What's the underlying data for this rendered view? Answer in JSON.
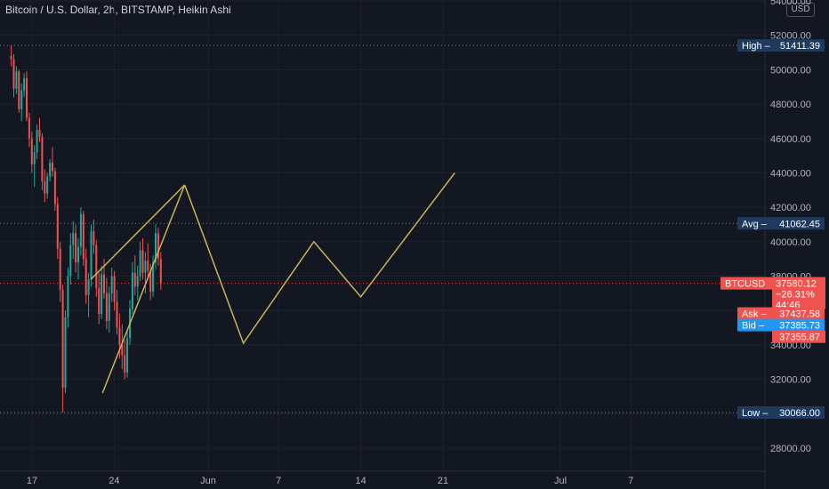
{
  "header": {
    "title": "Bitcoin / U.S. Dollar, 2h, BITSTAMP, Heikin Ashi",
    "currency": "USD"
  },
  "colors": {
    "background": "#131722",
    "grid": "#1e222d",
    "up": "#26a69a",
    "down": "#ef5350",
    "drawing": "#c9b45a",
    "hilo_tag": "#1e3a5f",
    "last_tag": "#ef5350",
    "bid_tag": "#2196f3"
  },
  "chart_data": {
    "type": "candlestick",
    "ylim": [
      28000,
      54000
    ],
    "yticks": [
      28000,
      30000,
      32000,
      34000,
      36000,
      38000,
      40000,
      42000,
      44000,
      46000,
      48000,
      50000,
      52000,
      54000
    ],
    "xticks": [
      {
        "label": "17",
        "x": "2021-05-17"
      },
      {
        "label": "24",
        "x": "2021-05-24"
      },
      {
        "label": "Jun",
        "x": "2021-06-01"
      },
      {
        "label": "7",
        "x": "2021-06-07"
      },
      {
        "label": "14",
        "x": "2021-06-14"
      },
      {
        "label": "21",
        "x": "2021-06-21"
      },
      {
        "label": "Jul",
        "x": "2021-07-01"
      },
      {
        "label": "7",
        "x": "2021-07-07"
      }
    ],
    "price_stats": [
      {
        "label": "High",
        "value": "51411.39",
        "y": 51411.39,
        "kind": "hilo"
      },
      {
        "label": "Avg",
        "value": "41062.45",
        "y": 41062.45,
        "kind": "hilo"
      },
      {
        "label": "Low",
        "value": "30066.00",
        "y": 30066.0,
        "kind": "hilo"
      }
    ],
    "last_price": {
      "symbol": "BTCUSD",
      "price": "37580.12",
      "change": "−26.31%",
      "countdown": "44:46",
      "y": 37580.12
    },
    "ask": {
      "label": "Ask",
      "value": "37437.58",
      "y": 37437.58
    },
    "bid": {
      "label": "Bid",
      "value": "37385.73",
      "y": 37385.73
    },
    "extra_price": {
      "value": "37355.87",
      "y": 37355.87
    },
    "drawings": [
      {
        "name": "wedge-upper-line",
        "points": [
          [
            "2021-05-22",
            37800
          ],
          [
            "2021-05-30",
            43300
          ]
        ]
      },
      {
        "name": "wedge-lower-line",
        "points": [
          [
            "2021-05-23",
            31200
          ],
          [
            "2021-05-30",
            43300
          ]
        ]
      },
      {
        "name": "projection-path",
        "points": [
          [
            "2021-05-30",
            43300
          ],
          [
            "2021-06-04",
            34100
          ],
          [
            "2021-06-10",
            40000
          ],
          [
            "2021-06-14",
            36800
          ],
          [
            "2021-06-22",
            44000
          ]
        ]
      }
    ],
    "candles_ohlc": [
      [
        50800,
        51411,
        50200,
        50600
      ],
      [
        50600,
        50900,
        48400,
        48900
      ],
      [
        48900,
        50200,
        48600,
        49900
      ],
      [
        49900,
        50000,
        47500,
        47700
      ],
      [
        47700,
        49200,
        47000,
        48800
      ],
      [
        48800,
        49800,
        48400,
        49500
      ],
      [
        49500,
        49900,
        47000,
        47200
      ],
      [
        47200,
        47500,
        45500,
        46000
      ],
      [
        46000,
        46400,
        44000,
        44500
      ],
      [
        44500,
        45600,
        43200,
        45200
      ],
      [
        45200,
        46800,
        44800,
        46500
      ],
      [
        46500,
        47200,
        45800,
        46100
      ],
      [
        46100,
        46300,
        43000,
        43500
      ],
      [
        43500,
        44200,
        42300,
        42800
      ],
      [
        42800,
        44000,
        42500,
        43800
      ],
      [
        43800,
        44800,
        43500,
        44600
      ],
      [
        44600,
        45500,
        43800,
        44100
      ],
      [
        44100,
        44300,
        41800,
        42200
      ],
      [
        42200,
        42600,
        39000,
        39600
      ],
      [
        39600,
        40000,
        36500,
        37200
      ],
      [
        37200,
        37500,
        30066,
        31500
      ],
      [
        31500,
        36000,
        31200,
        35600
      ],
      [
        35600,
        38500,
        35000,
        38000
      ],
      [
        38000,
        40500,
        37500,
        39800
      ],
      [
        39800,
        41200,
        39000,
        40500
      ],
      [
        40500,
        41000,
        38200,
        38800
      ],
      [
        38800,
        40200,
        37800,
        39700
      ],
      [
        39700,
        42000,
        39200,
        41600
      ],
      [
        41600,
        41800,
        38600,
        39000
      ],
      [
        39000,
        39600,
        36400,
        36900
      ],
      [
        36900,
        38200,
        35600,
        37800
      ],
      [
        37800,
        41000,
        37400,
        40600
      ],
      [
        40600,
        41300,
        39300,
        39800
      ],
      [
        39800,
        40100,
        36800,
        37300
      ],
      [
        37300,
        38200,
        35200,
        35800
      ],
      [
        35800,
        38600,
        35500,
        38100
      ],
      [
        38100,
        39000,
        36700,
        37000
      ],
      [
        37000,
        37900,
        34900,
        35400
      ],
      [
        35400,
        37400,
        34700,
        37000
      ],
      [
        37000,
        38500,
        36500,
        38000
      ],
      [
        38000,
        38300,
        36000,
        36500
      ],
      [
        36500,
        37200,
        34600,
        35000
      ],
      [
        35000,
        35800,
        33200,
        34000
      ],
      [
        34000,
        35200,
        32600,
        33400
      ],
      [
        33400,
        34300,
        32000,
        32400
      ],
      [
        32400,
        34900,
        32100,
        34400
      ],
      [
        34400,
        36600,
        34000,
        36100
      ],
      [
        36100,
        38800,
        35800,
        38200
      ],
      [
        38200,
        39200,
        36900,
        37400
      ],
      [
        37400,
        38600,
        36600,
        38000
      ],
      [
        38000,
        40000,
        37700,
        39500
      ],
      [
        39500,
        40200,
        37800,
        38200
      ],
      [
        38200,
        39400,
        37000,
        38900
      ],
      [
        38900,
        39900,
        37800,
        38300
      ],
      [
        38300,
        38700,
        36600,
        37100
      ],
      [
        37100,
        39200,
        36800,
        38800
      ],
      [
        38800,
        41000,
        38400,
        40500
      ],
      [
        40500,
        40800,
        38600,
        39000
      ],
      [
        39000,
        39400,
        37200,
        37580
      ]
    ]
  }
}
